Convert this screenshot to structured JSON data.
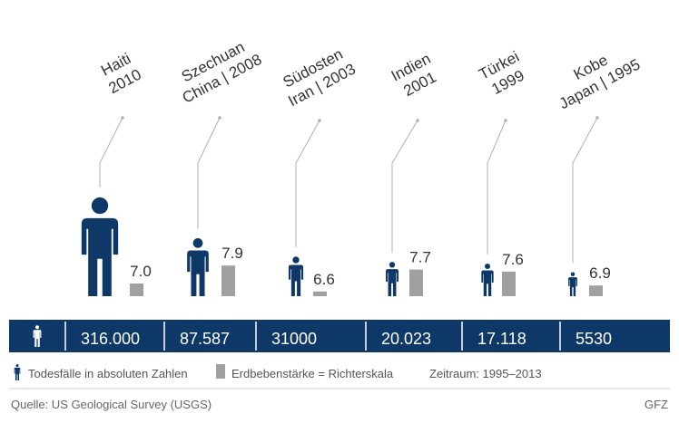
{
  "chart_data": {
    "type": "bar",
    "categories": [
      {
        "name": "Haiti",
        "year": "2010"
      },
      {
        "name": "Szechuan",
        "year": "China | 2008"
      },
      {
        "name": "Südosten",
        "year": "Iran | 2003"
      },
      {
        "name": "Indien",
        "year": "2001"
      },
      {
        "name": "Türkei",
        "year": "1999"
      },
      {
        "name": "Kobe",
        "year": "Japan | 1995"
      }
    ],
    "series": [
      {
        "name": "Todesfälle in absoluten Zahlen",
        "values": [
          316000,
          87587,
          31000,
          20023,
          17118,
          5530
        ],
        "labels": [
          "316.000",
          "87.587",
          "31000",
          "20.023",
          "17.118",
          "5530"
        ]
      },
      {
        "name": "Erdbebenstärke = Richterskala",
        "values": [
          7.0,
          7.9,
          6.6,
          7.7,
          7.6,
          6.9
        ],
        "labels": [
          "7.0",
          "7.9",
          "6.6",
          "7.7",
          "7.6",
          "6.9"
        ]
      }
    ],
    "period": "Zeitraum: 1995–2013",
    "source": "Quelle: US Geological Survey (USGS)",
    "credit": "GFZ",
    "colors": {
      "navy": "#0d3868",
      "gray": "#a0a0a0",
      "line": "#b0b0b0"
    }
  }
}
